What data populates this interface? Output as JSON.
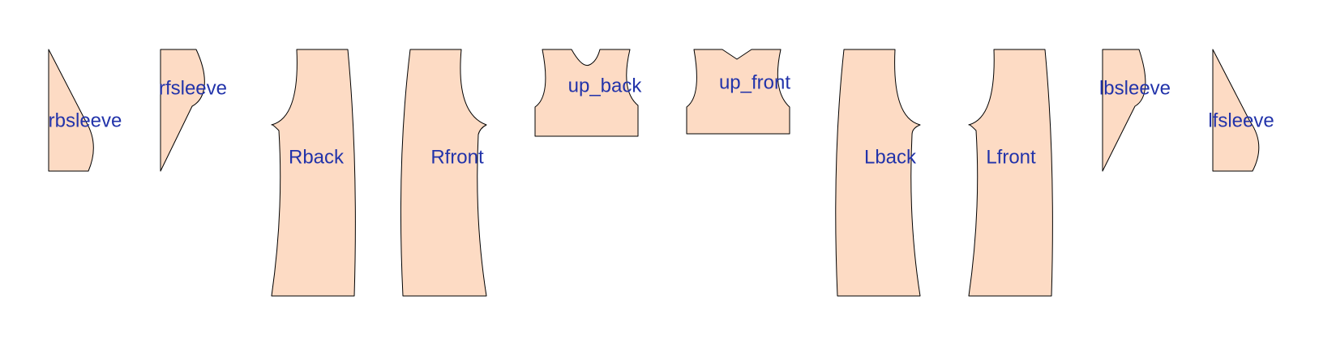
{
  "colors": {
    "fill": "#fddbc4",
    "label": "#2233aa"
  },
  "pieces": [
    {
      "id": "rbsleeve",
      "label": "rbsleeve"
    },
    {
      "id": "rfsleeve",
      "label": "rfsleeve"
    },
    {
      "id": "rback",
      "label": "Rback"
    },
    {
      "id": "rfront",
      "label": "Rfront"
    },
    {
      "id": "up-back",
      "label": "up_back"
    },
    {
      "id": "up-front",
      "label": "up_front"
    },
    {
      "id": "lback",
      "label": "Lback"
    },
    {
      "id": "lfront",
      "label": "Lfront"
    },
    {
      "id": "lbsleeve",
      "label": "lbsleeve"
    },
    {
      "id": "lfsleeve",
      "label": "lfsleeve"
    }
  ]
}
